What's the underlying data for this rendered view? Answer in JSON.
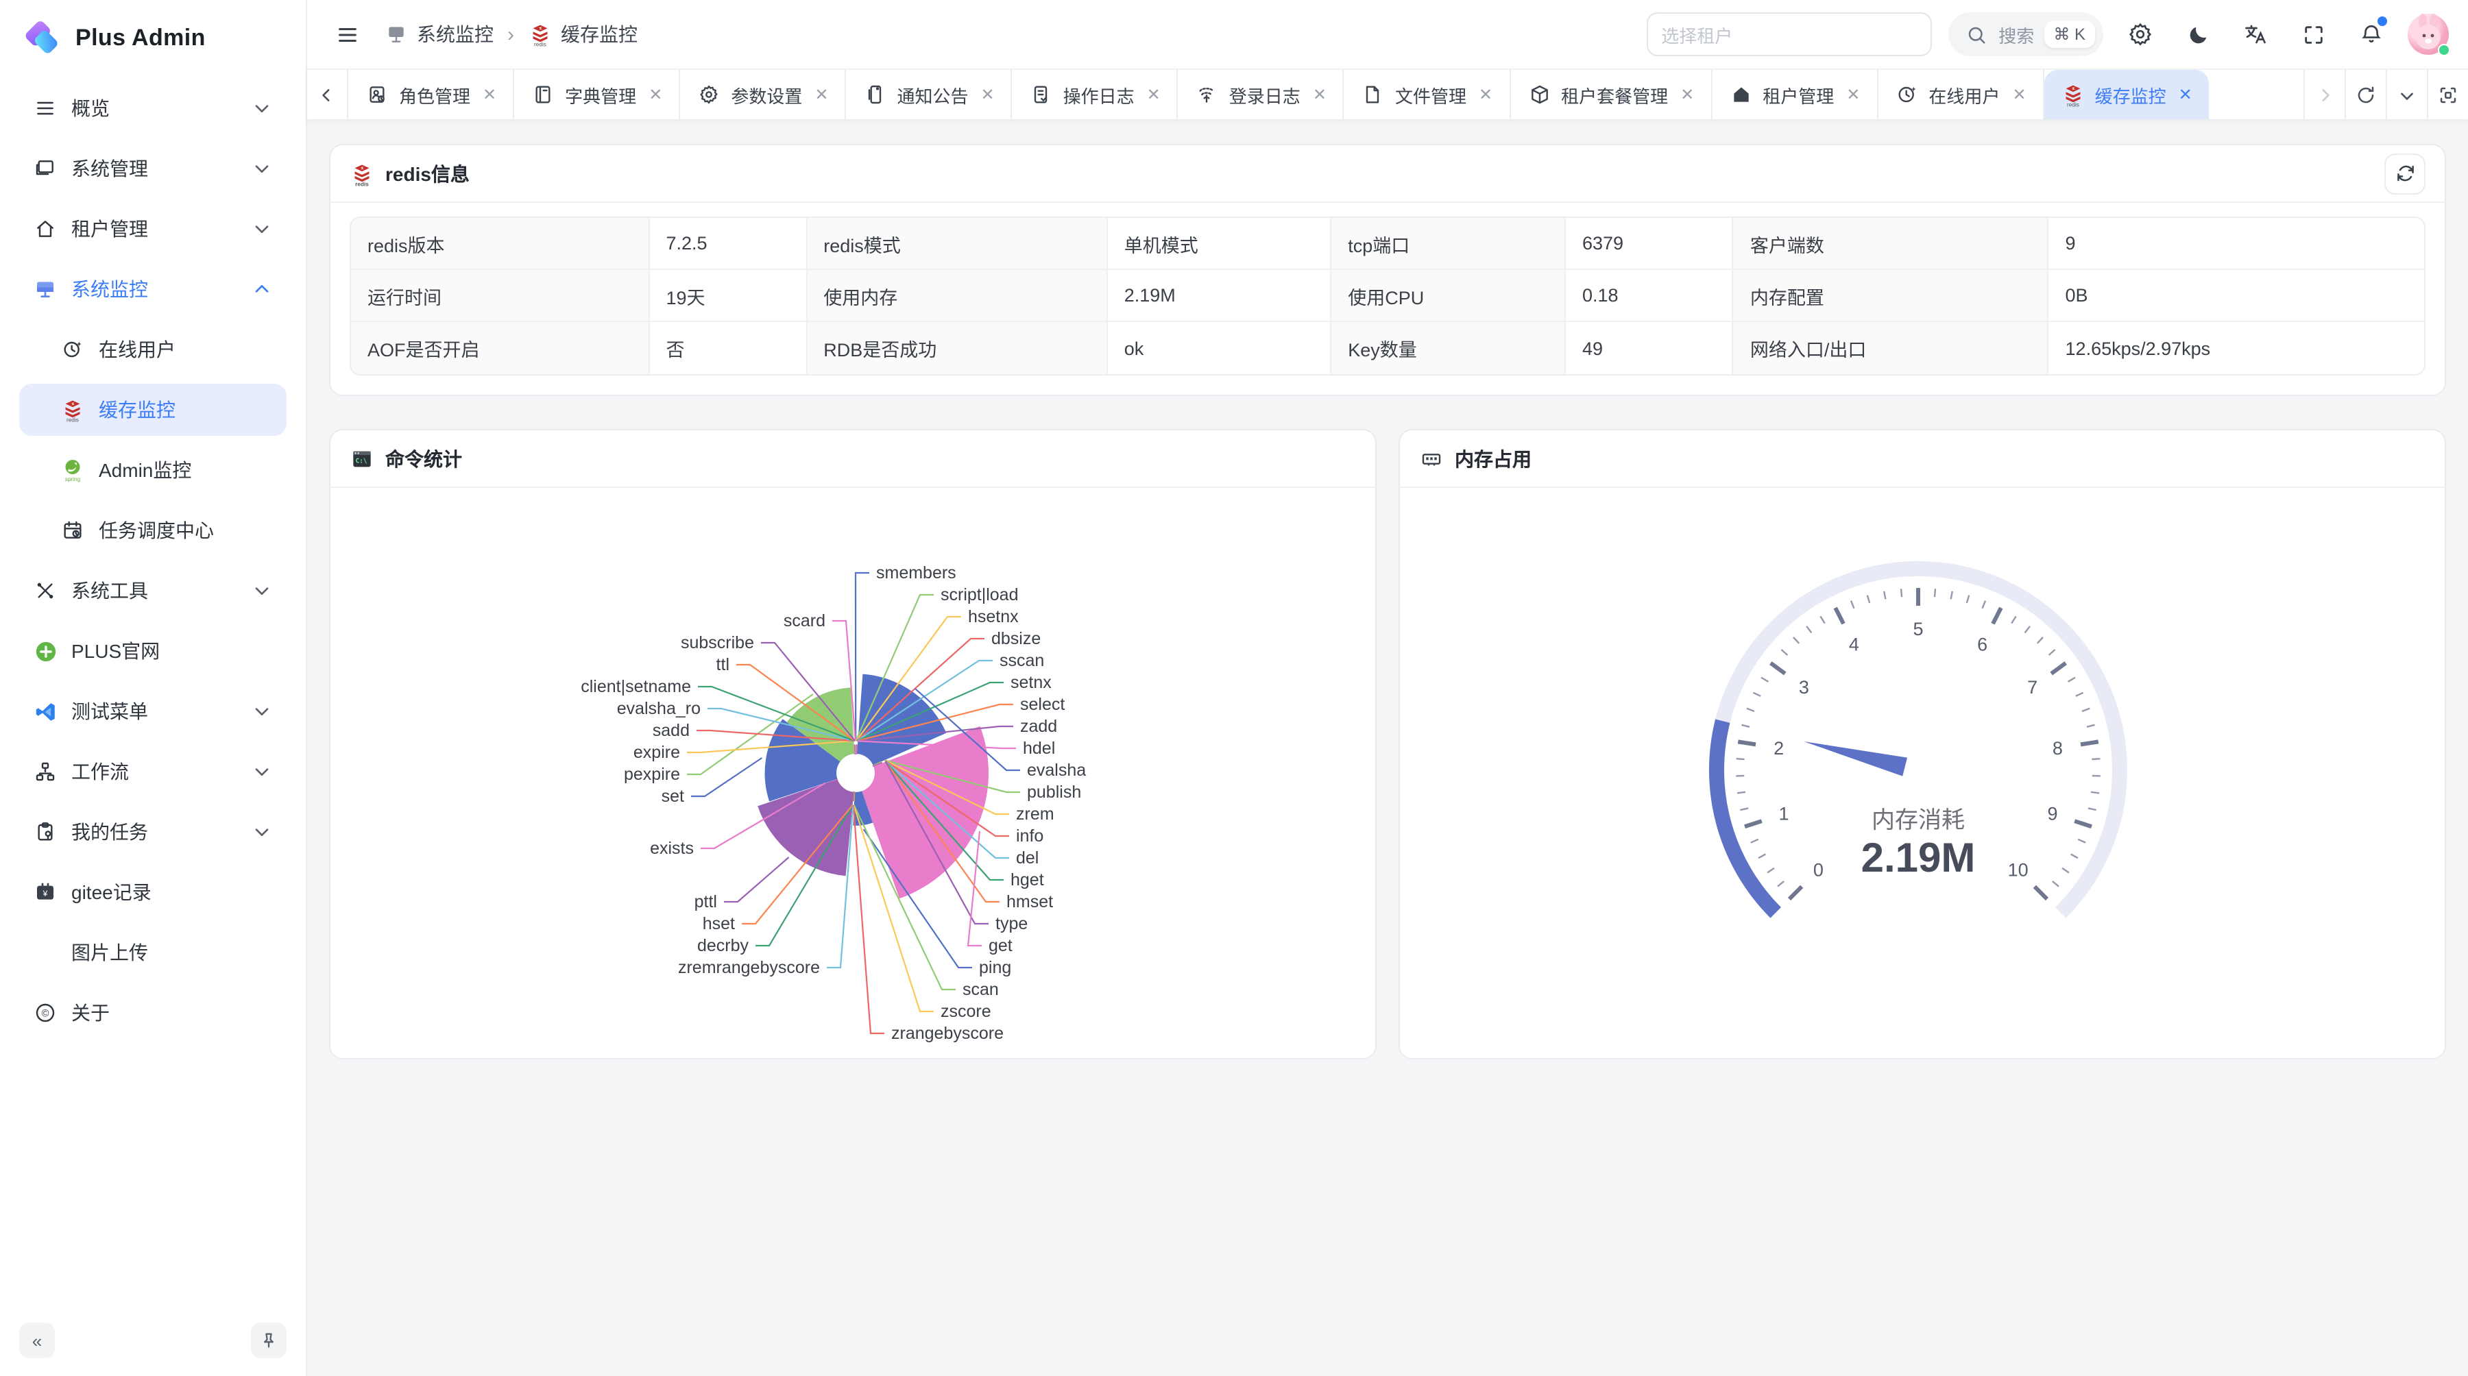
{
  "app": {
    "accent": "#3b7cf7",
    "content_bg": "#f3f5f7"
  },
  "sidebar": {
    "logo_text": "Plus Admin",
    "items": [
      {
        "label": "概览",
        "icon": "menu-lines",
        "chevron": "down"
      },
      {
        "label": "系统管理",
        "icon": "monitor",
        "chevron": "down"
      },
      {
        "label": "租户管理",
        "icon": "home",
        "chevron": "down"
      },
      {
        "label": "系统监控",
        "icon": "monitor-filled",
        "chevron": "up",
        "parent_active": true,
        "children": [
          {
            "label": "在线用户",
            "icon": "clock-sparkle"
          },
          {
            "label": "缓存监控",
            "icon": "redis",
            "active": true
          },
          {
            "label": "Admin监控",
            "icon": "spring"
          },
          {
            "label": "任务调度中心",
            "icon": "calendar"
          }
        ]
      },
      {
        "label": "系统工具",
        "icon": "tools",
        "chevron": "down"
      },
      {
        "label": "PLUS官网",
        "icon": "plus-circle"
      },
      {
        "label": "测试菜单",
        "icon": "vscode",
        "chevron": "down"
      },
      {
        "label": "工作流",
        "icon": "workflow",
        "chevron": "down"
      },
      {
        "label": "我的任务",
        "icon": "clipboard",
        "chevron": "down"
      },
      {
        "label": "gitee记录",
        "icon": "gitee"
      },
      {
        "label": "图片上传",
        "icon": null
      },
      {
        "label": "关于",
        "icon": "about"
      }
    ],
    "collapse_glyph": "«"
  },
  "header": {
    "breadcrumb": [
      {
        "label": "系统监控",
        "icon": "monitor-gray"
      },
      {
        "label": "缓存监控",
        "icon": "redis"
      }
    ],
    "tenant_placeholder": "选择租户",
    "search_label": "搜索",
    "search_kbd": "⌘ K"
  },
  "tabbar": {
    "tabs": [
      {
        "label": "角色管理",
        "icon": "role"
      },
      {
        "label": "字典管理",
        "icon": "book"
      },
      {
        "label": "参数设置",
        "icon": "gear"
      },
      {
        "label": "通知公告",
        "icon": "megaphone"
      },
      {
        "label": "操作日志",
        "icon": "oplog"
      },
      {
        "label": "登录日志",
        "icon": "fingerprint"
      },
      {
        "label": "文件管理",
        "icon": "file"
      },
      {
        "label": "租户套餐管理",
        "icon": "package"
      },
      {
        "label": "租户管理",
        "icon": "home-filled"
      },
      {
        "label": "在线用户",
        "icon": "clock-sparkle"
      },
      {
        "label": "缓存监控",
        "icon": "redis",
        "active": true
      }
    ],
    "close_glyph": "✕"
  },
  "redis_info": {
    "title": "redis信息",
    "rows": [
      [
        {
          "k": "redis版本",
          "v": "7.2.5"
        },
        {
          "k": "redis模式",
          "v": "单机模式"
        },
        {
          "k": "tcp端口",
          "v": "6379"
        },
        {
          "k": "客户端数",
          "v": "9"
        }
      ],
      [
        {
          "k": "运行时间",
          "v": "19天"
        },
        {
          "k": "使用内存",
          "v": "2.19M"
        },
        {
          "k": "使用CPU",
          "v": "0.18"
        },
        {
          "k": "内存配置",
          "v": "0B"
        }
      ],
      [
        {
          "k": "AOF是否开启",
          "v": "否"
        },
        {
          "k": "RDB是否成功",
          "v": "ok"
        },
        {
          "k": "Key数量",
          "v": "49"
        },
        {
          "k": "网络入口/出口",
          "v": "12.65kps/2.97kps"
        }
      ]
    ]
  },
  "chart_data": [
    {
      "type": "pie",
      "variant": "nightingale-rose",
      "title": "命令统计",
      "title_icon": "terminal",
      "legend_position": "none",
      "palette": [
        "#5470c6",
        "#91cc75",
        "#fac858",
        "#ee6666",
        "#73c0de",
        "#3ba272",
        "#fc8452",
        "#9a60b4",
        "#ea7ccc"
      ],
      "note": "values estimated from slice angles/radii; 命令调用占比",
      "data": [
        {
          "name": "smembers",
          "value": 0.5
        },
        {
          "name": "script|load",
          "value": 0.5
        },
        {
          "name": "hsetnx",
          "value": 0.5
        },
        {
          "name": "dbsize",
          "value": 0.5
        },
        {
          "name": "sscan",
          "value": 0.5
        },
        {
          "name": "setnx",
          "value": 0.5
        },
        {
          "name": "select",
          "value": 0.5
        },
        {
          "name": "zadd",
          "value": 0.5
        },
        {
          "name": "hdel",
          "value": 0.5
        },
        {
          "name": "evalsha",
          "value": 68
        },
        {
          "name": "publish",
          "value": 0.5
        },
        {
          "name": "zrem",
          "value": 0.5
        },
        {
          "name": "info",
          "value": 0.5
        },
        {
          "name": "del",
          "value": 0.5
        },
        {
          "name": "hget",
          "value": 0.5
        },
        {
          "name": "hmset",
          "value": 0.5
        },
        {
          "name": "type",
          "value": 0.5
        },
        {
          "name": "get",
          "value": 100
        },
        {
          "name": "ping",
          "value": 24
        },
        {
          "name": "scan",
          "value": 0.5
        },
        {
          "name": "zscore",
          "value": 0.5
        },
        {
          "name": "zrangebyscore",
          "value": 0.5
        },
        {
          "name": "zremrangebyscore",
          "value": 0.5
        },
        {
          "name": "decrby",
          "value": 0.5
        },
        {
          "name": "hset",
          "value": 0.5
        },
        {
          "name": "pttl",
          "value": 72
        },
        {
          "name": "exists",
          "value": 0.5
        },
        {
          "name": "set",
          "value": 60
        },
        {
          "name": "pexpire",
          "value": 55
        },
        {
          "name": "expire",
          "value": 0.5
        },
        {
          "name": "sadd",
          "value": 0.5
        },
        {
          "name": "evalsha_ro",
          "value": 0.5
        },
        {
          "name": "client|setname",
          "value": 0.5
        },
        {
          "name": "ttl",
          "value": 0.5
        },
        {
          "name": "subscribe",
          "value": 0.5
        },
        {
          "name": "scard",
          "value": 0.5
        }
      ]
    },
    {
      "type": "gauge",
      "title": "内存占用",
      "title_icon": "memory",
      "label": "内存消耗",
      "value": 2.19,
      "display": "2.19M",
      "min": 0,
      "max": 10,
      "tick_labels": [
        "0",
        "1",
        "2",
        "3",
        "4",
        "5",
        "6",
        "7",
        "8",
        "9",
        "10"
      ],
      "start_angle": 225,
      "end_angle": -45,
      "progress_color": "#5d71c7",
      "track_color": "#e8ebf6",
      "tick_color": "#6f7890",
      "label_color": "#555c6b"
    }
  ]
}
